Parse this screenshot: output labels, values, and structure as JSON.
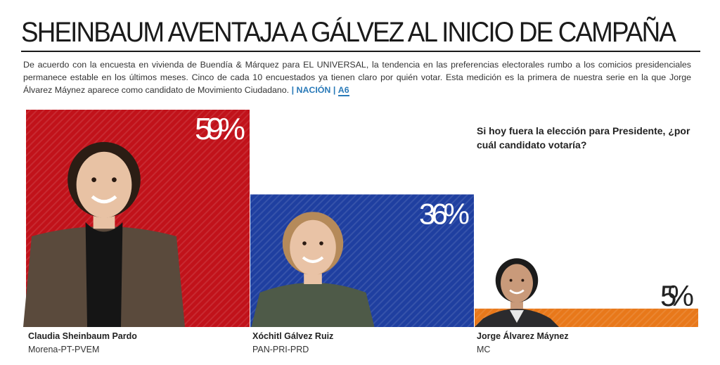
{
  "header": {
    "title": "SHEINBAUM AVENTAJA A GÁLVEZ AL INICIO DE CAMPAÑA",
    "intro": "De acuerdo con la encuesta en vivienda de Buendía & Márquez para EL UNIVERSAL, la tendencia en las preferencias electorales rumbo a los comicios presidenciales permanece estable en los últimos meses. Cinco de cada 10 encuestados ya tienen claro por quién votar. Esta medición es la primera de nuestra serie en la que Jorge Álvarez Máynez aparece como candidato de Movimiento Ciudadano.",
    "section_ref": "| NACIÓN |",
    "page_ref": "A6"
  },
  "chart_data": {
    "type": "bar",
    "question": "Si hoy fuera la elección para Presidente, ¿por cuál candidato votaría?",
    "categories": [
      "Claudia Sheinbaum Pardo",
      "Xóchitl Gálvez Ruiz",
      "Jorge Álvarez Máynez"
    ],
    "parties": [
      "Morena-PT-PVEM",
      "PAN-PRI-PRD",
      "MC"
    ],
    "values": [
      59,
      36,
      5
    ],
    "value_labels": [
      "59%",
      "36%",
      "5%"
    ],
    "colors": [
      "#c1121a",
      "#1f3fa0",
      "#e8781a"
    ],
    "ylim": [
      0,
      59
    ],
    "grid": false
  }
}
